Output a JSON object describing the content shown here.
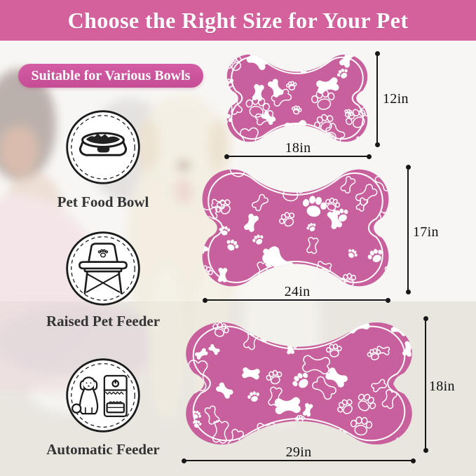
{
  "header": {
    "title": "Choose the Right Size for Your Pet"
  },
  "badge": {
    "label": "Suitable for Various Bowls"
  },
  "features": [
    {
      "label": "Pet Food Bowl",
      "icon": "pet-food-bowl-icon"
    },
    {
      "label": "Raised Pet Feeder",
      "icon": "raised-pet-feeder-icon"
    },
    {
      "label": "Automatic Feeder",
      "icon": "automatic-feeder-icon"
    }
  ],
  "sizes": [
    {
      "name": "small",
      "width_label": "18in",
      "height_label": "12in"
    },
    {
      "name": "medium",
      "width_label": "24in",
      "height_label": "17in"
    },
    {
      "name": "large",
      "width_label": "29in",
      "height_label": "18in"
    }
  ],
  "pattern_glyphs": [
    "bone-icon",
    "paw-icon"
  ],
  "colors": {
    "banner": "#d4619c",
    "badge": "#c94f9a",
    "mat": "#c7609c",
    "pattern": "#ffffff",
    "ink": "#171717"
  }
}
